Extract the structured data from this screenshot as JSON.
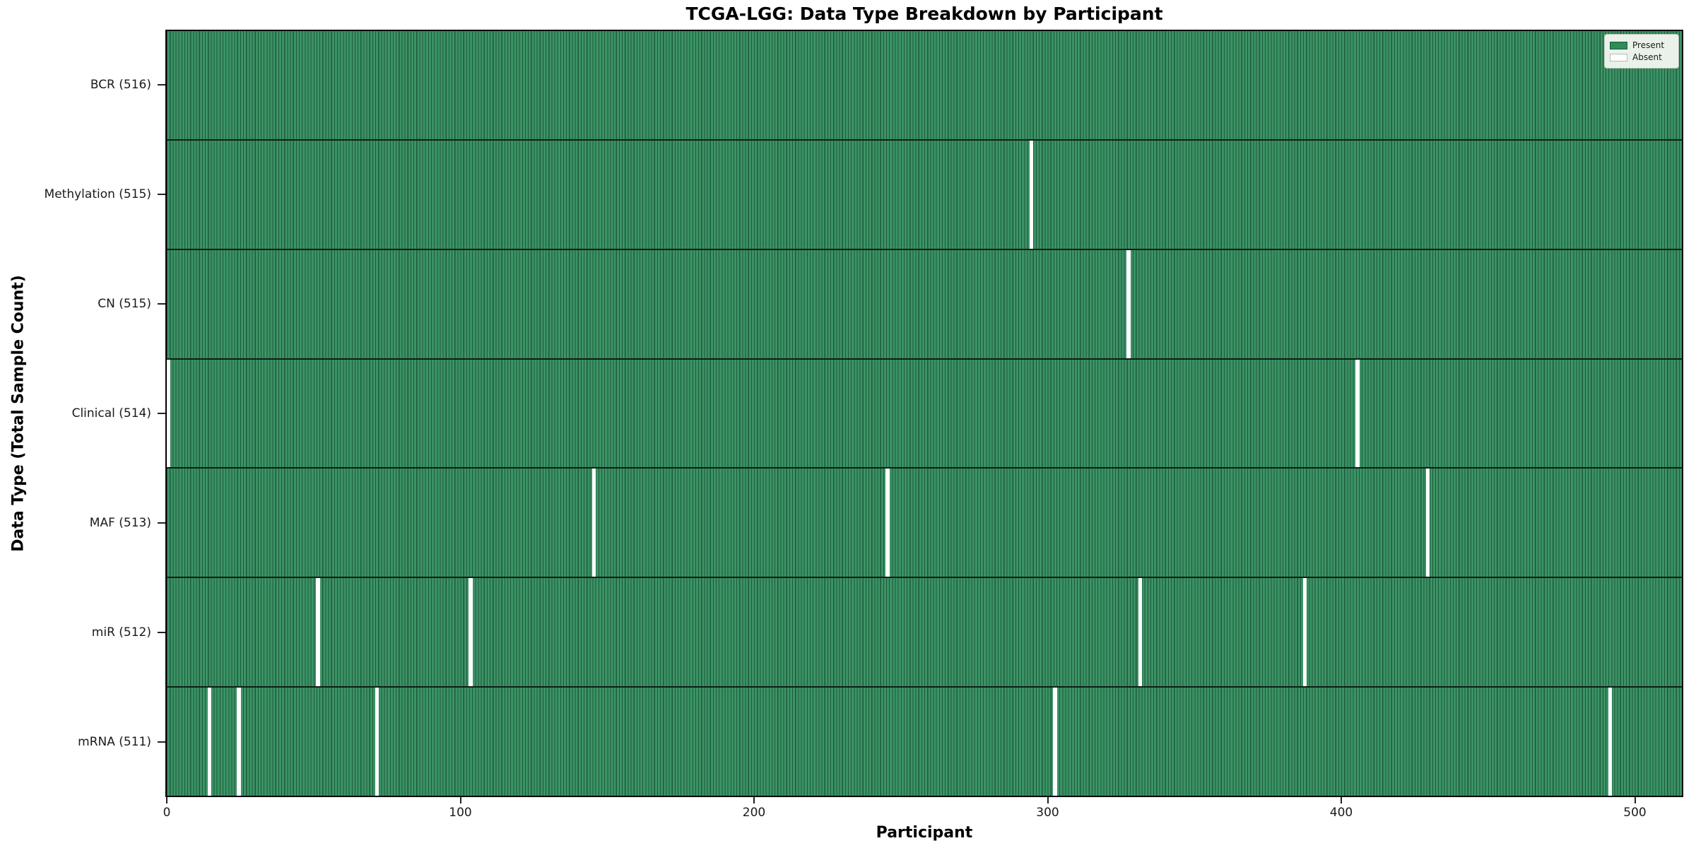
{
  "title": "TCGA-LGG: Data Type Breakdown by Participant",
  "xlabel": "Participant",
  "ylabel": "Data Type (Total Sample Count)",
  "legend": {
    "present_label": "Present",
    "absent_label": "Absent"
  },
  "colors": {
    "present_fill": "#3b9366",
    "cell_edge": "#1e5a3a",
    "absent_fill": "#ffffff",
    "row_separator": "#0d1f15",
    "plot_border": "#000000",
    "legend_present_swatch": "#2f8b58"
  },
  "chart_data": {
    "type": "heatmap",
    "title": "TCGA-LGG: Data Type Breakdown by Participant",
    "xlabel": "Participant",
    "ylabel": "Data Type (Total Sample Count)",
    "x_range": [
      0,
      516
    ],
    "x_ticks": [
      0,
      100,
      200,
      300,
      400,
      500
    ],
    "total_participants": 516,
    "legend_entries": [
      "Present",
      "Absent"
    ],
    "legend_position": "upper right",
    "grid": false,
    "rows": [
      {
        "label": "BCR (516)",
        "data_type": "BCR",
        "present_count": 516,
        "absent_participants": []
      },
      {
        "label": "Methylation (515)",
        "data_type": "Methylation",
        "present_count": 515,
        "absent_participants": [
          294
        ]
      },
      {
        "label": "CN (515)",
        "data_type": "CN",
        "present_count": 515,
        "absent_participants": [
          327
        ]
      },
      {
        "label": "Clinical (514)",
        "data_type": "Clinical",
        "present_count": 514,
        "absent_participants": [
          0,
          405
        ]
      },
      {
        "label": "MAF (513)",
        "data_type": "MAF",
        "present_count": 513,
        "absent_participants": [
          145,
          245,
          429
        ]
      },
      {
        "label": "miR (512)",
        "data_type": "miR",
        "present_count": 512,
        "absent_participants": [
          51,
          103,
          331,
          387
        ]
      },
      {
        "label": "mRNA (511)",
        "data_type": "mRNA",
        "present_count": 511,
        "absent_participants": [
          14,
          24,
          71,
          302,
          491
        ]
      }
    ]
  }
}
